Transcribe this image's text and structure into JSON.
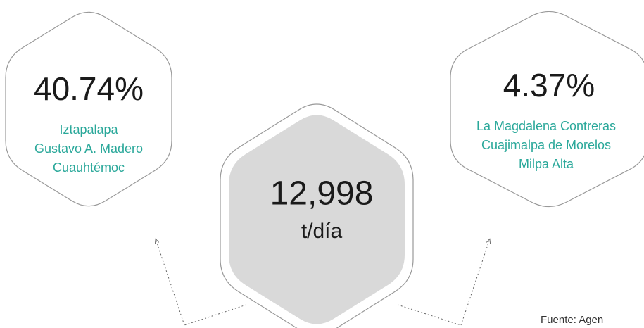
{
  "left": {
    "value": "40.74%",
    "names": [
      "Iztapalapa",
      "Gustavo A. Madero",
      "Cuauhtémoc"
    ]
  },
  "center": {
    "value": "12,998",
    "unit": "t/día"
  },
  "right": {
    "value": "4.37%",
    "names": [
      "La Magdalena Contreras",
      "Cuajimalpa de Morelos",
      "Milpa Alta"
    ]
  },
  "source": "Fuente: Agen"
}
